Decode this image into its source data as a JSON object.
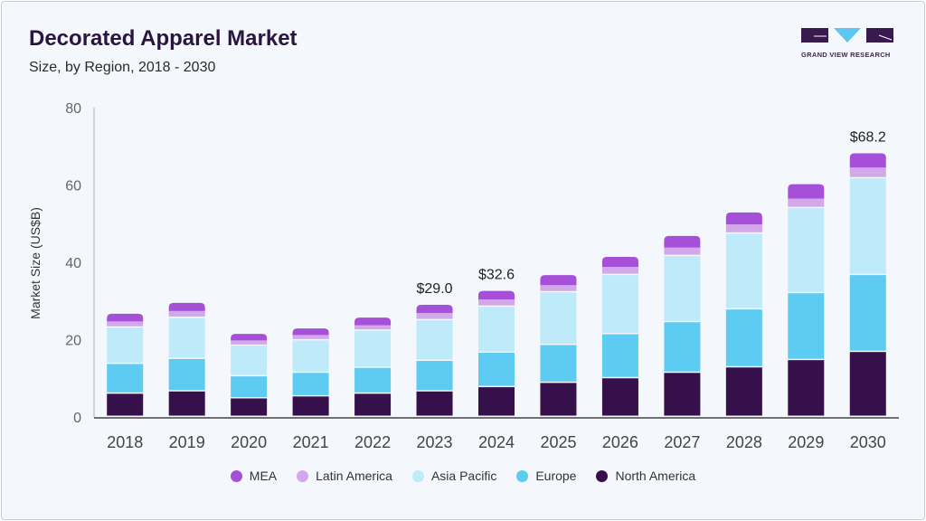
{
  "title": "Decorated Apparel Market",
  "subtitle": "Size, by Region, 2018 - 2030",
  "logo_text": "GRAND VIEW RESEARCH",
  "chart_data": {
    "type": "bar",
    "stacked": true,
    "title": "Decorated Apparel Market",
    "subtitle": "Size, by Region, 2018 - 2030",
    "xlabel": "",
    "ylabel": "Market Size (US$B)",
    "ylim": [
      0,
      80
    ],
    "yticks": [
      0,
      20,
      40,
      60,
      80
    ],
    "grid": false,
    "legend_position": "bottom",
    "categories": [
      "2018",
      "2019",
      "2020",
      "2021",
      "2022",
      "2023",
      "2024",
      "2025",
      "2026",
      "2027",
      "2028",
      "2029",
      "2030"
    ],
    "series": [
      {
        "name": "North America",
        "color": "#36104a",
        "values": [
          6.0,
          6.6,
          4.8,
          5.3,
          6.0,
          6.6,
          7.7,
          8.8,
          10.0,
          11.4,
          12.8,
          14.7,
          16.8
        ]
      },
      {
        "name": "Europe",
        "color": "#5ecbf3",
        "values": [
          7.7,
          8.4,
          5.7,
          6.1,
          6.7,
          7.9,
          8.9,
          9.8,
          11.4,
          13.1,
          15.0,
          17.3,
          19.9
        ]
      },
      {
        "name": "Asia Pacific",
        "color": "#beeaf9",
        "values": [
          9.4,
          10.6,
          7.9,
          8.4,
          9.6,
          10.5,
          11.9,
          13.6,
          15.3,
          17.1,
          19.6,
          22.0,
          25.0
        ]
      },
      {
        "name": "Latin America",
        "color": "#d3a8ea",
        "values": [
          1.6,
          1.8,
          1.4,
          1.4,
          1.4,
          1.9,
          1.9,
          1.9,
          2.1,
          2.2,
          2.4,
          2.5,
          2.8
        ]
      },
      {
        "name": "MEA",
        "color": "#a64fd9",
        "values": [
          2.0,
          2.1,
          1.7,
          1.7,
          2.0,
          2.1,
          2.2,
          2.6,
          2.6,
          3.0,
          3.1,
          3.7,
          3.7
        ]
      }
    ],
    "annotations": [
      {
        "category": "2023",
        "label": "$29.0"
      },
      {
        "category": "2024",
        "label": "$32.6"
      },
      {
        "category": "2030",
        "label": "$68.2"
      }
    ],
    "legend_order": [
      "MEA",
      "Latin America",
      "Asia Pacific",
      "Europe",
      "North America"
    ]
  }
}
